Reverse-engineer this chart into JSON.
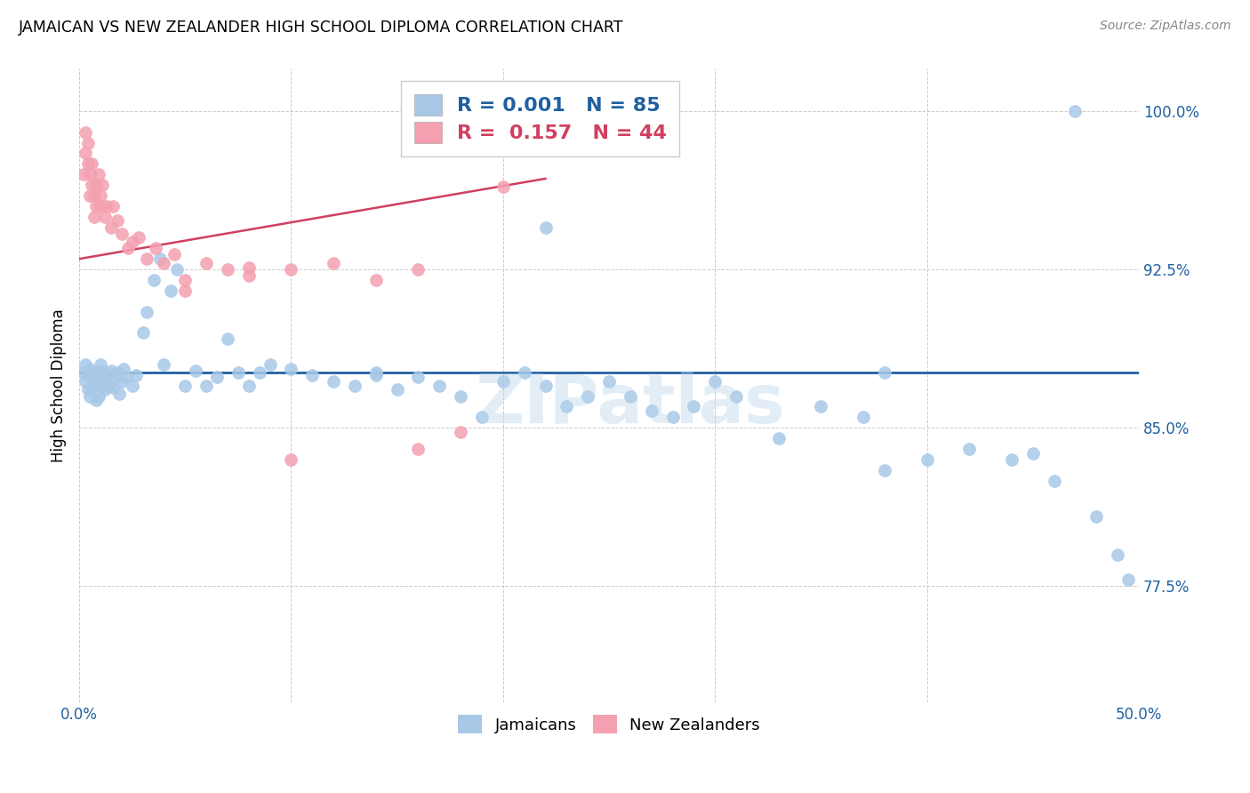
{
  "title": "JAMAICAN VS NEW ZEALANDER HIGH SCHOOL DIPLOMA CORRELATION CHART",
  "source": "Source: ZipAtlas.com",
  "ylabel": "High School Diploma",
  "xlim": [
    0.0,
    0.5
  ],
  "ylim": [
    0.72,
    1.02
  ],
  "yticks": [
    0.775,
    0.85,
    0.925,
    1.0
  ],
  "ytick_labels": [
    "77.5%",
    "85.0%",
    "92.5%",
    "100.0%"
  ],
  "xticks": [
    0.0,
    0.1,
    0.2,
    0.3,
    0.4,
    0.5
  ],
  "xtick_labels": [
    "0.0%",
    "",
    "",
    "",
    "",
    "50.0%"
  ],
  "blue_color": "#a8c8e8",
  "pink_color": "#f4a0b0",
  "line_blue_color": "#2060a0",
  "line_pink_color": "#d04060",
  "r_blue": "0.001",
  "n_blue": "85",
  "r_pink": "0.157",
  "n_pink": "44",
  "blue_line_y": 0.876,
  "watermark": "ZIPatlas",
  "blue_scatter_x": [
    0.002,
    0.003,
    0.003,
    0.004,
    0.004,
    0.005,
    0.005,
    0.006,
    0.006,
    0.007,
    0.007,
    0.008,
    0.008,
    0.009,
    0.009,
    0.01,
    0.01,
    0.011,
    0.012,
    0.012,
    0.013,
    0.014,
    0.015,
    0.016,
    0.017,
    0.018,
    0.019,
    0.02,
    0.021,
    0.022,
    0.025,
    0.027,
    0.03,
    0.032,
    0.035,
    0.038,
    0.04,
    0.043,
    0.046,
    0.05,
    0.055,
    0.06,
    0.065,
    0.07,
    0.075,
    0.08,
    0.085,
    0.09,
    0.1,
    0.11,
    0.12,
    0.13,
    0.14,
    0.15,
    0.16,
    0.17,
    0.18,
    0.19,
    0.2,
    0.21,
    0.22,
    0.23,
    0.24,
    0.25,
    0.26,
    0.27,
    0.28,
    0.29,
    0.3,
    0.31,
    0.33,
    0.35,
    0.37,
    0.38,
    0.4,
    0.42,
    0.44,
    0.45,
    0.46,
    0.48,
    0.49,
    0.495,
    0.14,
    0.22,
    0.38,
    0.47
  ],
  "blue_scatter_y": [
    0.876,
    0.88,
    0.872,
    0.875,
    0.868,
    0.878,
    0.865,
    0.874,
    0.869,
    0.876,
    0.87,
    0.875,
    0.863,
    0.877,
    0.865,
    0.88,
    0.87,
    0.874,
    0.868,
    0.876,
    0.872,
    0.87,
    0.877,
    0.869,
    0.874,
    0.876,
    0.866,
    0.872,
    0.878,
    0.874,
    0.87,
    0.875,
    0.895,
    0.905,
    0.92,
    0.93,
    0.88,
    0.915,
    0.925,
    0.87,
    0.877,
    0.87,
    0.874,
    0.892,
    0.876,
    0.87,
    0.876,
    0.88,
    0.878,
    0.875,
    0.872,
    0.87,
    0.875,
    0.868,
    0.874,
    0.87,
    0.865,
    0.855,
    0.872,
    0.876,
    0.87,
    0.86,
    0.865,
    0.872,
    0.865,
    0.858,
    0.855,
    0.86,
    0.872,
    0.865,
    0.845,
    0.86,
    0.855,
    0.83,
    0.835,
    0.84,
    0.835,
    0.838,
    0.825,
    0.808,
    0.79,
    0.778,
    0.876,
    0.945,
    0.876,
    1.0
  ],
  "pink_scatter_x": [
    0.002,
    0.003,
    0.003,
    0.004,
    0.004,
    0.005,
    0.005,
    0.006,
    0.006,
    0.007,
    0.007,
    0.008,
    0.008,
    0.009,
    0.01,
    0.01,
    0.011,
    0.012,
    0.013,
    0.015,
    0.016,
    0.018,
    0.02,
    0.023,
    0.025,
    0.028,
    0.032,
    0.036,
    0.04,
    0.045,
    0.05,
    0.06,
    0.07,
    0.08,
    0.1,
    0.12,
    0.14,
    0.16,
    0.05,
    0.08,
    0.16,
    0.18,
    0.2,
    0.1
  ],
  "pink_scatter_y": [
    0.97,
    0.98,
    0.99,
    0.975,
    0.985,
    0.96,
    0.97,
    0.965,
    0.975,
    0.95,
    0.96,
    0.955,
    0.965,
    0.97,
    0.955,
    0.96,
    0.965,
    0.95,
    0.955,
    0.945,
    0.955,
    0.948,
    0.942,
    0.935,
    0.938,
    0.94,
    0.93,
    0.935,
    0.928,
    0.932,
    0.92,
    0.928,
    0.925,
    0.922,
    0.925,
    0.928,
    0.92,
    0.925,
    0.915,
    0.926,
    0.84,
    0.848,
    0.964,
    0.835
  ],
  "pink_line_x0": 0.0,
  "pink_line_y0": 0.93,
  "pink_line_x1": 0.22,
  "pink_line_y1": 0.968
}
